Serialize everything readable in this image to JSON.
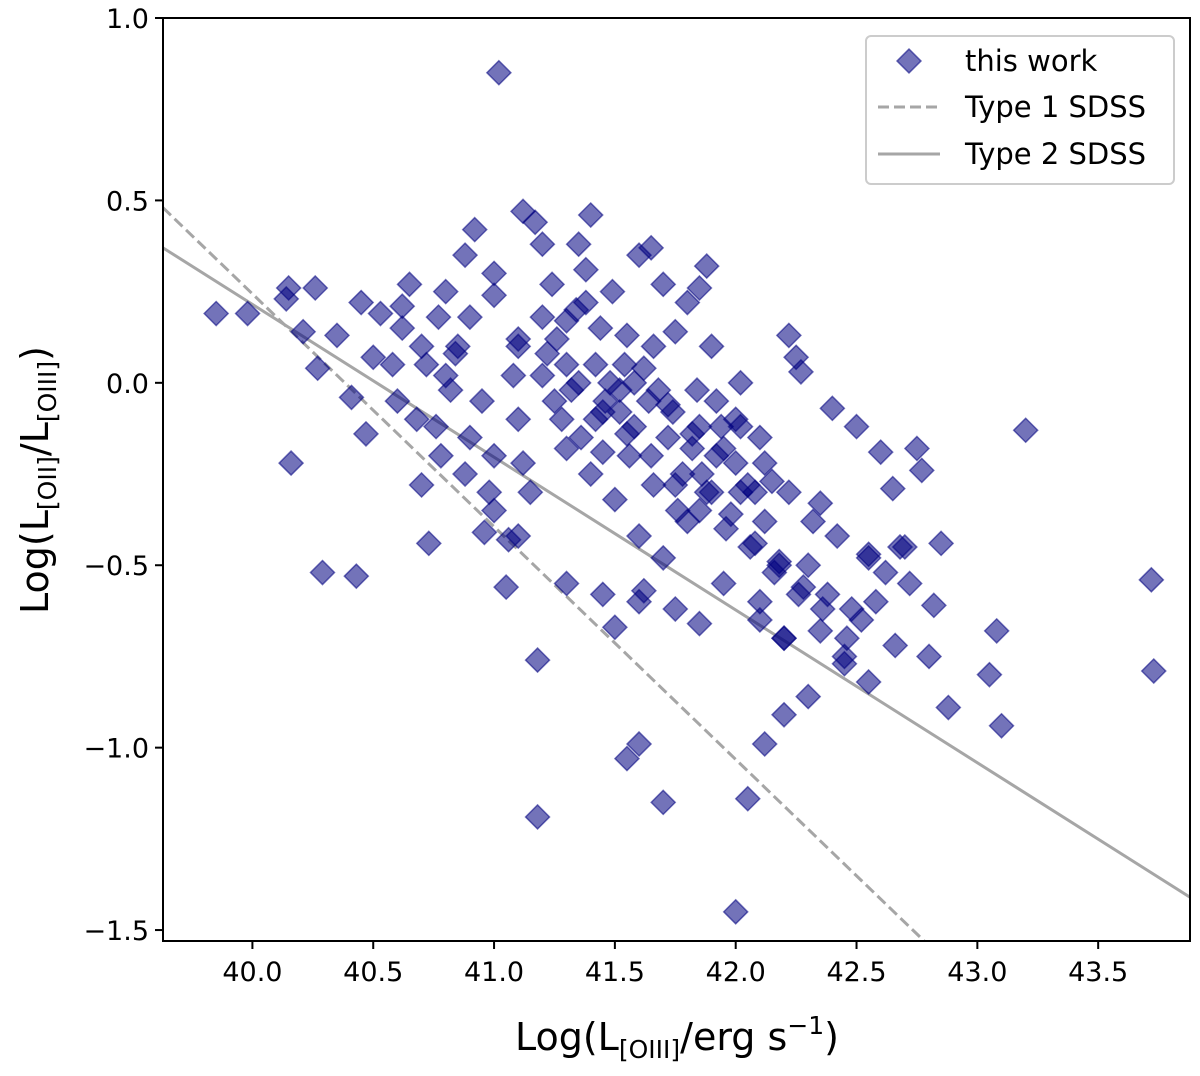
{
  "chart_data": {
    "type": "scatter",
    "xlabel": {
      "pre": "Log(L",
      "sub": "[OIII]",
      "post": "/erg s",
      "sup": "−1",
      "close": ")"
    },
    "ylabel": {
      "pre": "Log(L",
      "sub1": "[OII]",
      "mid": "/L",
      "sub2": "[OIII]",
      "close": ")"
    },
    "xlim": [
      39.63,
      43.88
    ],
    "ylim": [
      -1.53,
      1.0
    ],
    "xticks": [
      40.0,
      40.5,
      41.0,
      41.5,
      42.0,
      42.5,
      43.0,
      43.5
    ],
    "xtick_labels": [
      "40.0",
      "40.5",
      "41.0",
      "41.5",
      "42.0",
      "42.5",
      "43.0",
      "43.5"
    ],
    "yticks": [
      -1.5,
      -1.0,
      -0.5,
      0.0,
      0.5,
      1.0
    ],
    "ytick_labels": [
      "−1.5",
      "−1.0",
      "−0.5",
      "0.0",
      "0.5",
      "1.0"
    ],
    "grid": false,
    "legend_position": "top-right",
    "legend": [
      {
        "label": "this work",
        "marker": "diamond"
      },
      {
        "label": "Type 1 SDSS",
        "linestyle": "dashed"
      },
      {
        "label": "Type 2 SDSS",
        "linestyle": "solid"
      }
    ],
    "series": [
      {
        "name": "this work",
        "color": "#000080",
        "alpha": 0.55,
        "marker": "diamond",
        "x": [
          39.85,
          39.98,
          40.15,
          40.14,
          40.26,
          40.21,
          40.16,
          40.27,
          40.29,
          40.43,
          40.35,
          40.41,
          40.45,
          40.47,
          40.5,
          40.53,
          40.58,
          40.62,
          40.65,
          40.7,
          40.73,
          40.76,
          40.77,
          40.8,
          40.84,
          40.88,
          40.92,
          40.96,
          41.0,
          41.02,
          41.05,
          41.06,
          41.1,
          41.12,
          41.15,
          41.17,
          41.18,
          41.2,
          41.24,
          41.3,
          41.35,
          41.38,
          41.4,
          41.45,
          41.49,
          41.5,
          41.55,
          41.6,
          41.62,
          41.65,
          41.66,
          41.7,
          41.75,
          41.8,
          41.85,
          41.85,
          41.88,
          41.9,
          41.95,
          42.0,
          42.02,
          42.05,
          42.08,
          42.1,
          42.15,
          42.18,
          42.2,
          42.22,
          42.25,
          42.27,
          42.3,
          42.35,
          42.4,
          42.45,
          42.5,
          42.52,
          42.55,
          42.6,
          42.65,
          42.68,
          42.7,
          42.75,
          42.77,
          42.8,
          42.85,
          42.88,
          43.05,
          43.08,
          43.1,
          43.2,
          43.72,
          43.73,
          41.55,
          41.6,
          41.7,
          41.18,
          42.0,
          42.05,
          42.12,
          42.2,
          42.3,
          40.62,
          40.72,
          40.82,
          40.85,
          40.95,
          41.08,
          41.22,
          41.32,
          41.42,
          41.52,
          41.58,
          41.72,
          41.82,
          41.92,
          42.02,
          42.12,
          42.22,
          42.32,
          42.42,
          42.55,
          42.62,
          42.72,
          42.82,
          40.68,
          40.78,
          40.88,
          40.98,
          41.12,
          41.28,
          41.36,
          41.46,
          41.56,
          41.66,
          41.76,
          41.86,
          41.96,
          42.06,
          42.16,
          42.26,
          42.36,
          42.46,
          42.58,
          42.66,
          41.26,
          41.34,
          41.44,
          41.54,
          41.64,
          41.74,
          41.84,
          41.94,
          41.3,
          41.4,
          41.5,
          41.6,
          41.7,
          41.8,
          41.9,
          42.0,
          42.1,
          41.25,
          41.35,
          41.45,
          41.55,
          41.65,
          41.75,
          41.85,
          40.9,
          41.0,
          41.1,
          41.2,
          41.0,
          41.1,
          41.3,
          41.45,
          41.6,
          41.75,
          41.85,
          41.95,
          42.1,
          42.2,
          42.35,
          42.45,
          42.55,
          41.42,
          41.52,
          41.62,
          41.72,
          41.82,
          41.92,
          42.02,
          42.12,
          40.6,
          40.7,
          40.8,
          40.9,
          41.0,
          41.1,
          41.2,
          41.3,
          41.38,
          41.48,
          41.58,
          41.68,
          41.78,
          41.88,
          41.98,
          42.08,
          42.18,
          42.28,
          42.38,
          42.48
        ],
        "y": [
          0.19,
          0.19,
          0.26,
          0.23,
          0.26,
          0.14,
          -0.22,
          0.04,
          -0.52,
          -0.53,
          0.13,
          -0.04,
          0.22,
          -0.14,
          0.07,
          0.19,
          0.05,
          0.21,
          0.27,
          -0.28,
          -0.44,
          -0.12,
          0.18,
          0.25,
          0.08,
          0.35,
          0.42,
          -0.41,
          0.3,
          0.85,
          -0.56,
          -0.43,
          -0.1,
          0.47,
          -0.3,
          0.44,
          -0.76,
          0.38,
          0.27,
          0.17,
          0.38,
          0.31,
          0.46,
          -0.19,
          0.25,
          -0.67,
          0.13,
          0.35,
          -0.57,
          0.37,
          0.1,
          0.27,
          0.14,
          0.22,
          0.26,
          -0.12,
          0.32,
          0.1,
          -0.18,
          -0.1,
          0.0,
          -0.28,
          -0.3,
          -0.6,
          -0.27,
          -0.49,
          -0.7,
          0.13,
          0.07,
          0.03,
          -0.5,
          -0.33,
          -0.07,
          -0.77,
          -0.12,
          -0.65,
          -0.47,
          -0.19,
          -0.29,
          -0.45,
          -0.45,
          -0.18,
          -0.24,
          -0.75,
          -0.44,
          -0.89,
          -0.8,
          -0.68,
          -0.94,
          -0.13,
          -0.54,
          -0.79,
          -1.03,
          -0.99,
          -1.15,
          -1.19,
          -1.45,
          -1.14,
          -0.99,
          -0.91,
          -0.86,
          0.15,
          0.05,
          -0.02,
          0.1,
          -0.05,
          0.02,
          0.08,
          -0.02,
          0.05,
          -0.08,
          0.0,
          -0.15,
          -0.18,
          -0.05,
          -0.12,
          -0.22,
          -0.3,
          -0.38,
          -0.42,
          -0.48,
          -0.52,
          -0.55,
          -0.61,
          -0.1,
          -0.2,
          -0.25,
          -0.3,
          -0.22,
          -0.1,
          -0.15,
          -0.05,
          -0.2,
          -0.28,
          -0.35,
          -0.25,
          -0.4,
          -0.45,
          -0.52,
          -0.58,
          -0.62,
          -0.7,
          -0.6,
          -0.72,
          0.12,
          0.2,
          0.15,
          0.05,
          -0.05,
          -0.08,
          -0.02,
          -0.12,
          -0.18,
          -0.25,
          -0.32,
          -0.42,
          -0.48,
          -0.38,
          -0.3,
          -0.22,
          -0.15,
          -0.05,
          0.0,
          -0.08,
          -0.14,
          -0.2,
          -0.28,
          -0.35,
          0.18,
          0.24,
          0.1,
          0.02,
          -0.35,
          -0.42,
          -0.55,
          -0.58,
          -0.6,
          -0.62,
          -0.66,
          -0.55,
          -0.65,
          -0.7,
          -0.68,
          -0.75,
          -0.82,
          -0.1,
          -0.02,
          0.04,
          -0.06,
          -0.14,
          -0.2,
          -0.3,
          -0.38,
          -0.05,
          0.1,
          0.02,
          -0.15,
          -0.2,
          0.12,
          0.18,
          0.05,
          0.22,
          0.0,
          -0.12,
          -0.02,
          -0.25,
          -0.3,
          -0.36,
          -0.44,
          -0.5,
          -0.56,
          -0.58,
          -0.62
        ]
      },
      {
        "name": "Type 1 SDSS",
        "linestyle": "dashed",
        "color": "#a6a6a6",
        "x": [
          39.63,
          42.78
        ],
        "y": [
          0.48,
          -1.53
        ]
      },
      {
        "name": "Type 2 SDSS",
        "linestyle": "solid",
        "color": "#a6a6a6",
        "x": [
          39.63,
          43.88
        ],
        "y": [
          0.37,
          -1.41
        ]
      }
    ]
  }
}
